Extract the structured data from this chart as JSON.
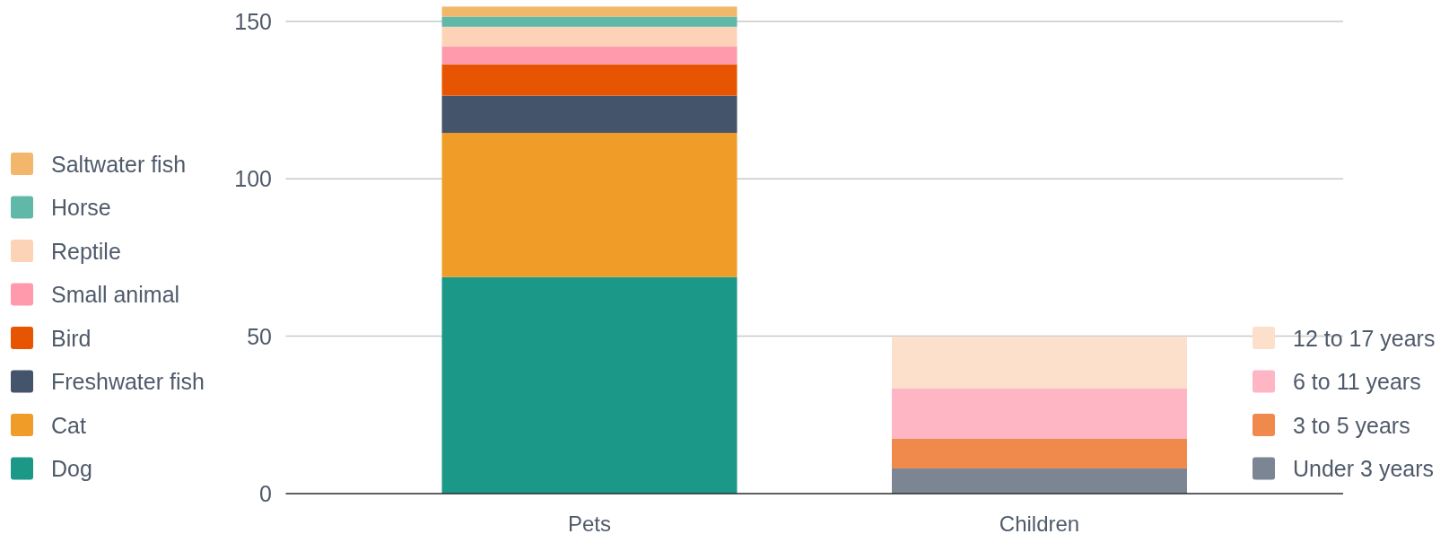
{
  "chart_data": {
    "type": "bar",
    "stacked": true,
    "categories": [
      "Pets",
      "Children"
    ],
    "series": [
      {
        "name": "Dog",
        "color": "#1b9887",
        "values": [
          68.8,
          null
        ]
      },
      {
        "name": "Cat",
        "color": "#f09c28",
        "values": [
          45.8,
          null
        ]
      },
      {
        "name": "Freshwater fish",
        "color": "#44546a",
        "values": [
          11.8,
          null
        ]
      },
      {
        "name": "Bird",
        "color": "#e85502",
        "values": [
          10.0,
          null
        ]
      },
      {
        "name": "Small animal",
        "color": "#fe9aab",
        "values": [
          5.7,
          null
        ]
      },
      {
        "name": "Reptile",
        "color": "#fdd3b8",
        "values": [
          6.2,
          null
        ]
      },
      {
        "name": "Horse",
        "color": "#5fb8a8",
        "values": [
          3.2,
          null
        ]
      },
      {
        "name": "Saltwater fish",
        "color": "#f3b76b",
        "values": [
          3.2,
          null
        ]
      },
      {
        "name": "Under 3 years",
        "color": "#7b8594",
        "values": [
          null,
          8.0
        ]
      },
      {
        "name": "3 to 5 years",
        "color": "#ef8a4c",
        "values": [
          null,
          9.4
        ]
      },
      {
        "name": "6 to 11 years",
        "color": "#feb6c5",
        "values": [
          null,
          16.1
        ]
      },
      {
        "name": "12 to 17 years",
        "color": "#fde0cb",
        "values": [
          null,
          16.3
        ]
      }
    ],
    "ylim": [
      0,
      155
    ],
    "yticks": [
      0,
      50,
      100,
      150
    ],
    "grid": "y",
    "legend": "left"
  }
}
